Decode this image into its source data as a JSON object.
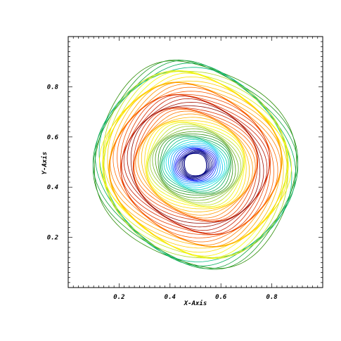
{
  "chart_data": {
    "type": "contour",
    "title": "",
    "xlabel": "X-Axis",
    "ylabel": "Y-Axis",
    "xlim": [
      0.0,
      1.0
    ],
    "ylim": [
      0.0,
      1.0
    ],
    "xticks": [
      0.2,
      0.4,
      0.6,
      0.8
    ],
    "yticks": [
      0.2,
      0.4,
      0.6,
      0.8
    ],
    "xtick_labels": [
      "0.2",
      "0.4",
      "0.6",
      "0.8"
    ],
    "ytick_labels": [
      "0.2",
      "0.4",
      "0.6",
      "0.8"
    ],
    "grid": false,
    "legend": "none",
    "colormap": [
      "#00007f",
      "#0000ff",
      "#00a0ff",
      "#00e0e0",
      "#00b060",
      "#2e8b00",
      "#9acd32",
      "#ffff00",
      "#ffb000",
      "#ff6000",
      "#d02000",
      "#7f0000"
    ],
    "shape": {
      "description_free": true,
      "center": [
        0.5,
        0.49
      ],
      "outer_radius_x": 0.38,
      "outer_radius_y": 0.44,
      "inner_radius_x": 0.13,
      "inner_radius_y": 0.08
    }
  }
}
